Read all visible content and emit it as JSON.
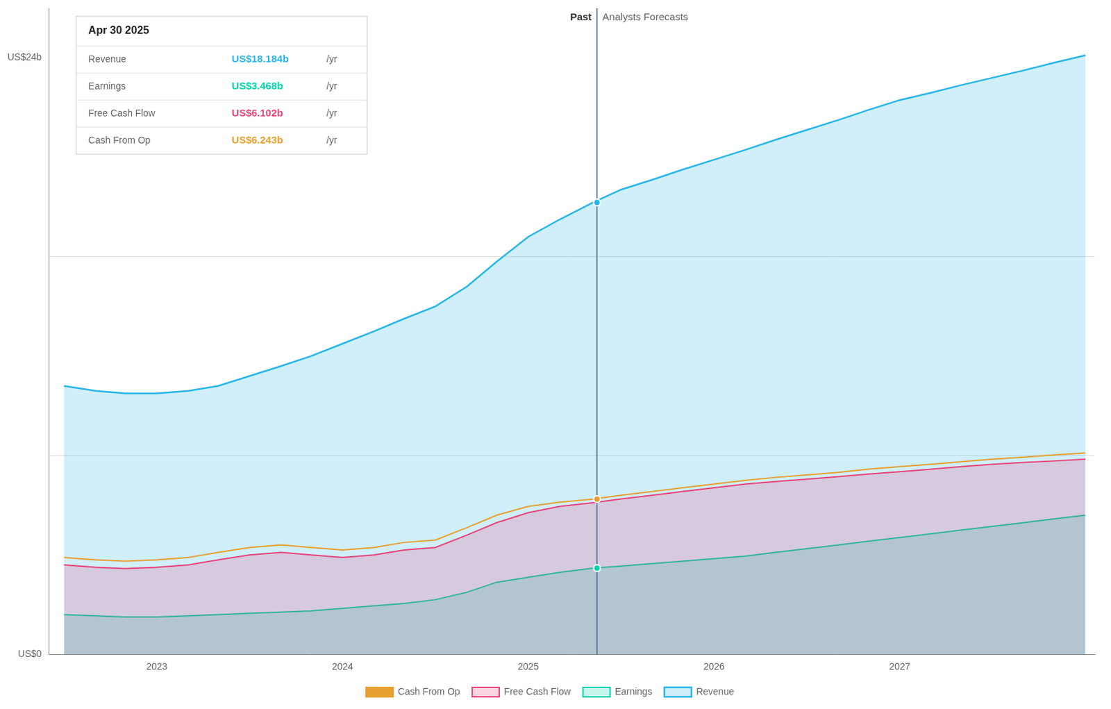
{
  "chart_data": {
    "type": "line",
    "x": [
      2022.5,
      2022.67,
      2022.83,
      2023.0,
      2023.17,
      2023.33,
      2023.5,
      2023.67,
      2023.83,
      2024.0,
      2024.17,
      2024.33,
      2024.5,
      2024.67,
      2024.83,
      2025.0,
      2025.17,
      2025.35,
      2025.35,
      2025.5,
      2025.67,
      2025.83,
      2026.0,
      2026.17,
      2026.33,
      2026.5,
      2026.67,
      2026.83,
      2027.0,
      2027.17,
      2027.33,
      2027.5,
      2027.67,
      2027.83,
      2028.0
    ],
    "series": [
      {
        "name": "Revenue",
        "color": "#29b6e8",
        "type": "area",
        "values": [
          10.8,
          10.6,
          10.5,
          10.5,
          10.6,
          10.8,
          11.2,
          11.6,
          12.0,
          12.5,
          13.0,
          13.5,
          14.0,
          14.8,
          15.8,
          16.8,
          17.5,
          18.184,
          18.184,
          18.7,
          19.1,
          19.5,
          19.9,
          20.3,
          20.7,
          21.1,
          21.5,
          21.9,
          22.3,
          22.6,
          22.9,
          23.2,
          23.5,
          23.8,
          24.1
        ]
      },
      {
        "name": "Earnings",
        "color": "#00d4aa",
        "type": "area",
        "values": [
          1.6,
          1.55,
          1.5,
          1.5,
          1.55,
          1.6,
          1.65,
          1.7,
          1.75,
          1.85,
          1.95,
          2.05,
          2.2,
          2.5,
          2.9,
          3.1,
          3.3,
          3.468,
          3.468,
          3.55,
          3.65,
          3.75,
          3.85,
          3.95,
          4.1,
          4.25,
          4.4,
          4.55,
          4.7,
          4.85,
          5.0,
          5.15,
          5.3,
          5.45,
          5.6
        ]
      },
      {
        "name": "Free Cash Flow",
        "color": "#e8447a",
        "type": "area",
        "values": [
          3.6,
          3.5,
          3.45,
          3.5,
          3.6,
          3.8,
          4.0,
          4.1,
          4.0,
          3.9,
          4.0,
          4.2,
          4.3,
          4.8,
          5.3,
          5.7,
          5.95,
          6.102,
          6.102,
          6.25,
          6.4,
          6.55,
          6.7,
          6.85,
          6.95,
          7.05,
          7.15,
          7.25,
          7.35,
          7.45,
          7.55,
          7.65,
          7.72,
          7.78,
          7.85
        ]
      },
      {
        "name": "Cash From Op",
        "color": "#e8a030",
        "type": "line",
        "values": [
          3.9,
          3.8,
          3.75,
          3.8,
          3.9,
          4.1,
          4.3,
          4.4,
          4.3,
          4.2,
          4.3,
          4.5,
          4.6,
          5.1,
          5.6,
          5.95,
          6.12,
          6.243,
          6.243,
          6.4,
          6.55,
          6.7,
          6.85,
          7.0,
          7.12,
          7.22,
          7.32,
          7.45,
          7.55,
          7.65,
          7.75,
          7.85,
          7.93,
          8.02,
          8.1
        ]
      }
    ],
    "xlim": [
      2022.42,
      2028.05
    ],
    "xticks": [
      2023.0,
      2024.0,
      2025.0,
      2026.0,
      2027.0
    ],
    "ylim": [
      0,
      26
    ],
    "yticks": [
      {
        "value": 0,
        "label": "US$0"
      },
      {
        "value": 24,
        "label": "US$24b"
      }
    ],
    "grid": false,
    "legend": "bottom",
    "markers": [
      {
        "series": "Revenue",
        "x": 2025.37,
        "y": 18.184
      },
      {
        "series": "Earnings",
        "x": 2025.37,
        "y": 3.468
      },
      {
        "series": "Cash From Op",
        "x": 2025.37,
        "y": 6.243
      }
    ],
    "annotations": [
      {
        "type": "vline",
        "x": 2025.37,
        "label_left": "Past",
        "label_right": "Analysts Forecasts"
      },
      {
        "type": "hline",
        "y": 8
      },
      {
        "type": "hline",
        "y": 16
      }
    ],
    "info_box": {
      "title": "Apr 30 2025",
      "rows": [
        {
          "name": "Revenue",
          "value": 18.184,
          "label": "US$18.184b",
          "unit": "/yr"
        },
        {
          "name": "Earnings",
          "value": 3.468,
          "label": "US$3.468b",
          "unit": "/yr"
        },
        {
          "name": "Free Cash Flow",
          "value": 6.102,
          "label": "US$6.102b",
          "unit": "/yr"
        },
        {
          "name": "Cash From Op",
          "value": 6.243,
          "label": "US$6.243b",
          "unit": "/yr"
        }
      ]
    }
  }
}
